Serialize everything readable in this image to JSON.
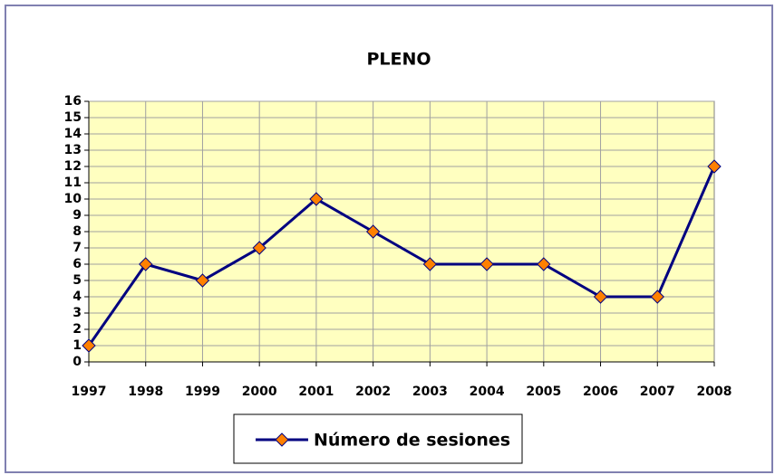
{
  "chart_data": {
    "type": "line",
    "title": "PLENO",
    "categories": [
      "1997",
      "1998",
      "1999",
      "2000",
      "2001",
      "2002",
      "2003",
      "2004",
      "2005",
      "2006",
      "2007",
      "2008"
    ],
    "series": [
      {
        "name": "Número de sesiones",
        "color": "#000080",
        "marker_color": "#ff8000",
        "values": [
          1,
          6,
          5,
          7,
          10,
          8,
          6,
          6,
          6,
          4,
          4,
          12
        ]
      }
    ],
    "ylim": [
      0,
      16
    ],
    "yticks": [
      0,
      1,
      2,
      3,
      4,
      5,
      6,
      7,
      8,
      9,
      10,
      11,
      12,
      13,
      14,
      15,
      16
    ],
    "grid": true,
    "legend": "bottom",
    "plot_background": "#ffffc0"
  }
}
